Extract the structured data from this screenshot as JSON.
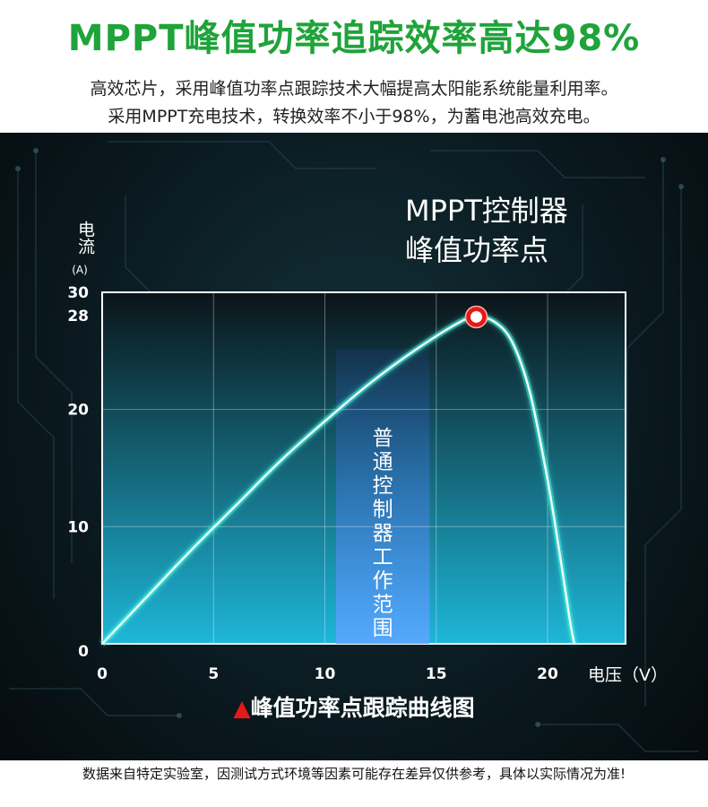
{
  "header": {
    "headline": "MPPT峰值功率追踪效率高达98%",
    "line1": "高效芯片，采用峰值功率点跟踪技术大幅提高太阳能系统能量利用率。",
    "line2": "采用MPPT充电技术，转换效率不小于98%，为蓄电池高效充电。"
  },
  "chart_title": {
    "line1": "MPPT控制器",
    "line2": "峰值功率点"
  },
  "caption": {
    "marker": "▲",
    "text": "峰值功率点跟踪曲线图"
  },
  "note": "数据来自特定实验室，因测试方式环境等因素可能存在差异仅供参考，具体以实际情况为准!",
  "colors": {
    "headline": "#1fa33a",
    "curve": "#7ff5e8",
    "peak": "#e21a1a",
    "band": "#3a78d8"
  },
  "chart_data": {
    "type": "line",
    "ylabel": "电流",
    "yunit": "(A)",
    "xlabel": "电压（V）",
    "xlim": [
      0,
      23.5
    ],
    "ylim": [
      0,
      30
    ],
    "xticks": [
      "0",
      "5",
      "10",
      "15",
      "20"
    ],
    "xtick_values": [
      0,
      5,
      10,
      15,
      20
    ],
    "yticks": [
      "0",
      "10",
      "20",
      "28",
      "30"
    ],
    "ytick_values": [
      0,
      10,
      20,
      28,
      30
    ],
    "grid": true,
    "series": [
      {
        "x": [
          0,
          2,
          4,
          6,
          8,
          10,
          12,
          14,
          16,
          16.8,
          17.6,
          18.4,
          19.2,
          20,
          20.6,
          21.0,
          21.2
        ],
        "y": [
          0,
          4,
          8,
          11.8,
          15.6,
          19,
          22.2,
          25,
          27.4,
          27.9,
          27.5,
          25.8,
          21.5,
          14,
          7,
          2,
          0
        ]
      }
    ],
    "peak": {
      "x": 16.8,
      "y": 27.9
    },
    "annotation": {
      "text": "普通控制器工作范围",
      "x_range": [
        10.5,
        14.7
      ]
    }
  }
}
